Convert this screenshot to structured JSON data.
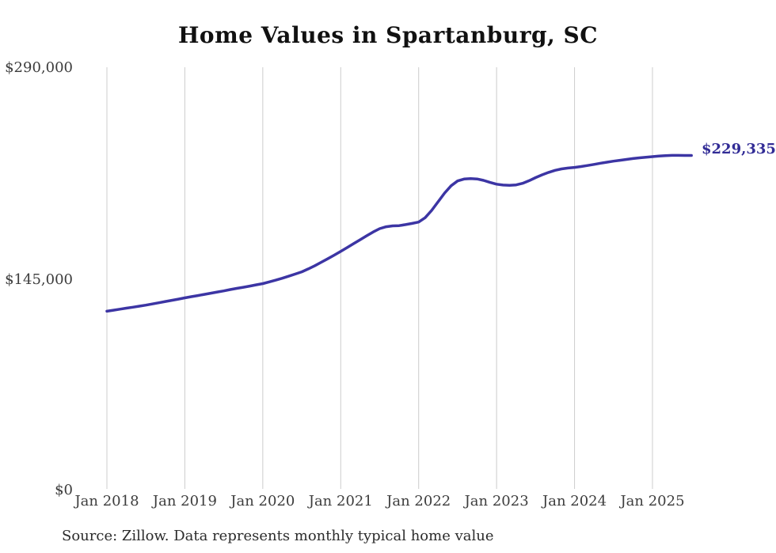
{
  "chart_data": {
    "type": "line",
    "title": "Home Values in Spartanburg, SC",
    "source_note": "Source: Zillow. Data represents monthly typical home value",
    "end_label": "$229,335",
    "end_value": 229335,
    "line_color": "#3c35a4",
    "end_label_color": "#322c96",
    "grid_color": "#cccccc",
    "ylim": [
      0,
      290000
    ],
    "y_ticks": [
      0,
      145000,
      290000
    ],
    "y_tick_labels": [
      "$0",
      "$145,000",
      "$290,000"
    ],
    "x_tick_labels": [
      "Jan 2018",
      "Jan 2019",
      "Jan 2020",
      "Jan 2021",
      "Jan 2022",
      "Jan 2023",
      "Jan 2024",
      "Jan 2025"
    ],
    "frequency": "monthly",
    "months": [
      "Jan 2018",
      "Feb 2018",
      "Mar 2018",
      "Apr 2018",
      "May 2018",
      "Jun 2018",
      "Jul 2018",
      "Aug 2018",
      "Sep 2018",
      "Oct 2018",
      "Nov 2018",
      "Dec 2018",
      "Jan 2019",
      "Feb 2019",
      "Mar 2019",
      "Apr 2019",
      "May 2019",
      "Jun 2019",
      "Jul 2019",
      "Aug 2019",
      "Sep 2019",
      "Oct 2019",
      "Nov 2019",
      "Dec 2019",
      "Jan 2020",
      "Feb 2020",
      "Mar 2020",
      "Apr 2020",
      "May 2020",
      "Jun 2020",
      "Jul 2020",
      "Aug 2020",
      "Sep 2020",
      "Oct 2020",
      "Nov 2020",
      "Dec 2020",
      "Jan 2021",
      "Feb 2021",
      "Mar 2021",
      "Apr 2021",
      "May 2021",
      "Jun 2021",
      "Jul 2021",
      "Aug 2021",
      "Sep 2021",
      "Oct 2021",
      "Nov 2021",
      "Dec 2021",
      "Jan 2022",
      "Feb 2022",
      "Mar 2022",
      "Apr 2022",
      "May 2022",
      "Jun 2022",
      "Jul 2022",
      "Aug 2022",
      "Sep 2022",
      "Oct 2022",
      "Nov 2022",
      "Dec 2022",
      "Jan 2023",
      "Feb 2023",
      "Mar 2023",
      "Apr 2023",
      "May 2023",
      "Jun 2023",
      "Jul 2023",
      "Aug 2023",
      "Sep 2023",
      "Oct 2023",
      "Nov 2023",
      "Dec 2023",
      "Jan 2024",
      "Feb 2024",
      "Mar 2024",
      "Apr 2024",
      "May 2024",
      "Jun 2024",
      "Jul 2024",
      "Aug 2024",
      "Sep 2024",
      "Oct 2024",
      "Nov 2024",
      "Dec 2024",
      "Jan 2025",
      "Feb 2025",
      "Mar 2025",
      "Apr 2025",
      "May 2025",
      "Jun 2025",
      "Jul 2025"
    ],
    "values": [
      122200,
      122900,
      123600,
      124300,
      125000,
      125700,
      126400,
      127200,
      128000,
      128900,
      129700,
      130500,
      131400,
      132200,
      133000,
      133800,
      134600,
      135400,
      136200,
      137100,
      137900,
      138700,
      139500,
      140400,
      141200,
      142400,
      143600,
      144900,
      146300,
      147800,
      149300,
      151300,
      153500,
      155900,
      158300,
      160800,
      163400,
      166000,
      168700,
      171400,
      174100,
      176700,
      179000,
      180300,
      180900,
      181100,
      181800,
      182600,
      183500,
      186500,
      191500,
      197500,
      203500,
      208500,
      211800,
      213100,
      213400,
      213200,
      212200,
      210800,
      209600,
      209000,
      208800,
      209100,
      210200,
      212000,
      214100,
      216000,
      217700,
      219100,
      220100,
      220700,
      221100,
      221700,
      222400,
      223200,
      224000,
      224700,
      225400,
      226000,
      226600,
      227200,
      227700,
      228100,
      228500,
      228900,
      229200,
      229400,
      229400,
      229350,
      229335
    ]
  }
}
